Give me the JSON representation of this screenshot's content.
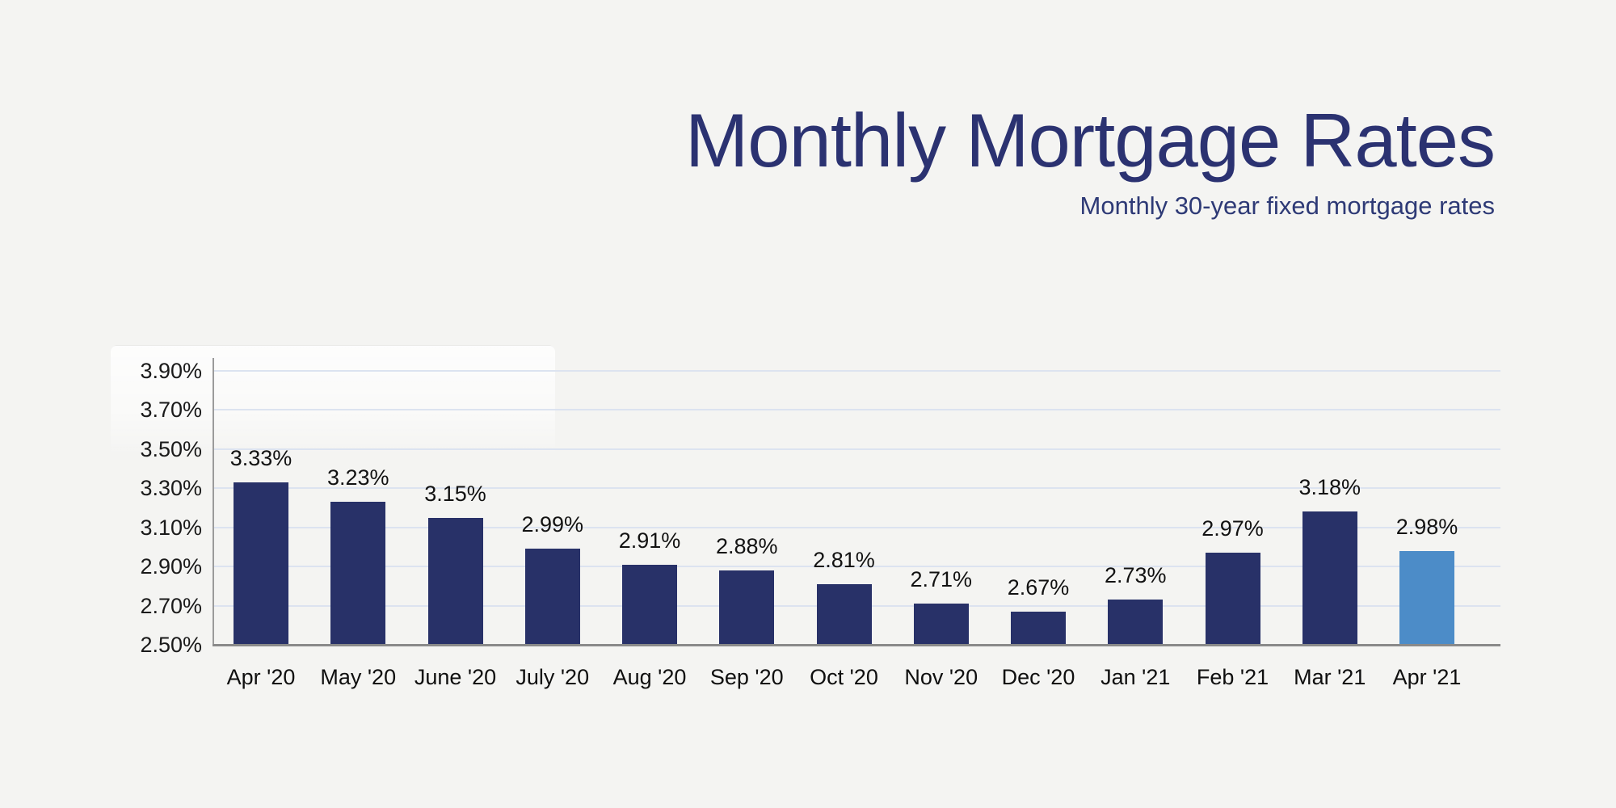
{
  "page": {
    "background_color": "#f4f4f2"
  },
  "header": {
    "title": "Monthly Mortgage Rates",
    "subtitle": "Monthly 30-year fixed mortgage rates",
    "title_color": "#2b3271",
    "subtitle_color": "#2e3a76"
  },
  "chart_data": {
    "type": "bar",
    "title": "Monthly Mortgage Rates",
    "subtitle": "Monthly 30-year fixed mortgage rates",
    "categories": [
      "Apr '20",
      "May '20",
      "June '20",
      "July '20",
      "Aug '20",
      "Sep '20",
      "Oct '20",
      "Nov '20",
      "Dec '20",
      "Jan '21",
      "Feb '21",
      "Mar '21",
      "Apr '21"
    ],
    "values": [
      3.33,
      3.23,
      3.15,
      2.99,
      2.91,
      2.88,
      2.81,
      2.71,
      2.67,
      2.73,
      2.97,
      3.18,
      2.98
    ],
    "value_labels": [
      "3.33%",
      "3.23%",
      "3.15%",
      "2.99%",
      "2.91%",
      "2.88%",
      "2.81%",
      "2.71%",
      "2.67%",
      "2.73%",
      "2.97%",
      "3.18%",
      "2.98%"
    ],
    "unit": "%",
    "xlabel": "",
    "ylabel": "",
    "ylim": [
      2.5,
      3.9
    ],
    "ytick_values": [
      2.5,
      2.7,
      2.9,
      3.1,
      3.3,
      3.5,
      3.7,
      3.9
    ],
    "ytick_labels": [
      "2.50%",
      "2.70%",
      "2.90%",
      "3.10%",
      "3.30%",
      "3.50%",
      "3.70%",
      "3.90%"
    ],
    "grid": true,
    "legend": "none",
    "bar_color": "#283168",
    "highlight_bar_color": "#4c8cc8",
    "highlight_index": 12,
    "grid_color": "#dce3f0",
    "axis_color": "#9b9b9b",
    "baseline_color": "#8a8a8a"
  }
}
